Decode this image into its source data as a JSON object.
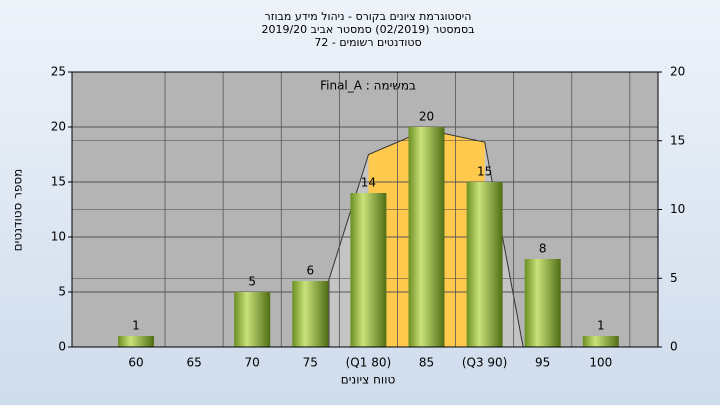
{
  "chart_data": {
    "type": "bar",
    "title_lines": [
      "היסטוגרמת ציונים בקורס - ניהול מידע מבוזר",
      "בסמסטר  (02/2019)  סמסטר אביב 2019/20",
      "סטודנטים רשומים - 72"
    ],
    "annotation": "Final_A : במשימה",
    "x_label": "טווח ציונים",
    "y_label": "מספר סטודנטים",
    "categories": [
      "60",
      "65",
      "70",
      "75",
      "(Q1 80)",
      "85",
      "(Q3 90)",
      "95",
      "100"
    ],
    "values": [
      1,
      null,
      5,
      6,
      14,
      20,
      15,
      8,
      1
    ],
    "color": "#8db43a",
    "ylim": [
      0,
      25
    ],
    "yticks": [
      0,
      5,
      10,
      15,
      20,
      25
    ],
    "y2lim": [
      0,
      20
    ],
    "y2ticks": [
      0,
      5,
      10,
      15,
      20
    ],
    "xlim": [
      54.5,
      104.9
    ],
    "grid": true,
    "overlay": {
      "axis": "y2",
      "x": [
        76.6,
        76.6,
        80,
        85,
        90,
        93.3
      ],
      "values": [
        0,
        4.9,
        14,
        15.8,
        14.9,
        0
      ],
      "color": "#c4c4c4",
      "highlight_color": "#ffc94d",
      "highlight_xlim": [
        80,
        90
      ]
    }
  }
}
